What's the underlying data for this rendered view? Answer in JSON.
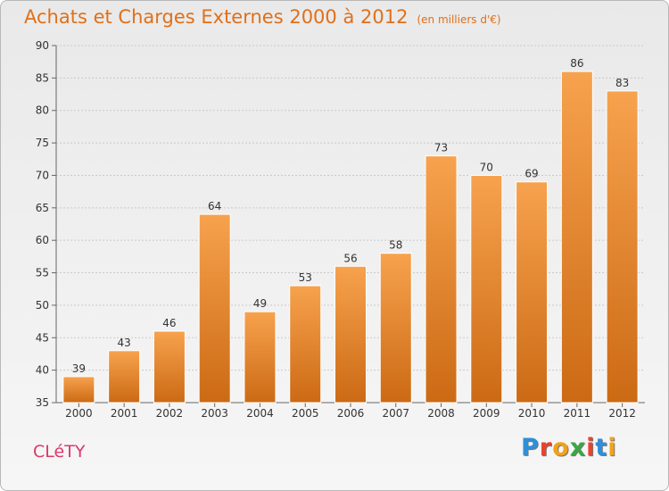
{
  "title": "Achats et Charges Externes 2000 à 2012",
  "subtitle": "(en milliers d'€)",
  "commune": "CLéTY",
  "logo_text": "Proxiti",
  "colors": {
    "title": "#e0701a",
    "bar_top": "#f7a24e",
    "bar_bottom": "#cc6a14",
    "commune": "#d93a6a"
  },
  "chart_data": {
    "type": "bar",
    "categories": [
      "2000",
      "2001",
      "2002",
      "2003",
      "2004",
      "2005",
      "2006",
      "2007",
      "2008",
      "2009",
      "2010",
      "2011",
      "2012"
    ],
    "values": [
      39,
      43,
      46,
      64,
      49,
      53,
      56,
      58,
      73,
      70,
      69,
      86,
      83
    ],
    "ylim": [
      35,
      90
    ],
    "yticks": [
      35,
      40,
      45,
      50,
      55,
      60,
      65,
      70,
      75,
      80,
      85,
      90
    ],
    "grid": true
  }
}
